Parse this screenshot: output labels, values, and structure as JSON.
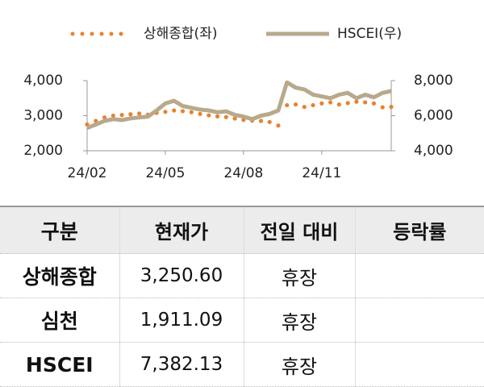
{
  "chart_data": {
    "type": "line",
    "x": [
      "24/02",
      null,
      null,
      null,
      null,
      null,
      null,
      null,
      null,
      "24/05",
      null,
      null,
      null,
      null,
      null,
      null,
      null,
      null,
      "24/08",
      null,
      null,
      null,
      null,
      null,
      null,
      null,
      null,
      "24/11",
      null,
      null,
      null,
      null,
      null,
      null,
      null,
      null
    ],
    "series": [
      {
        "name": "상해종합(좌)",
        "color": "#e8822e",
        "style": "dotted",
        "axis": "y",
        "values": [
          2750,
          2850,
          2950,
          3000,
          3020,
          3040,
          3060,
          3030,
          3080,
          3110,
          3150,
          3130,
          3100,
          3050,
          3010,
          2980,
          2960,
          2920,
          2880,
          2860,
          2850,
          2820,
          2720,
          3300,
          3320,
          3250,
          3300,
          3350,
          3380,
          3320,
          3360,
          3400,
          3380,
          3350,
          3240,
          3250
        ]
      },
      {
        "name": "HSCEI(우)",
        "color": "#b8a98c",
        "style": "solid",
        "axis": "y2",
        "values": [
          5300,
          5500,
          5700,
          5800,
          5750,
          5850,
          5900,
          5950,
          6300,
          6700,
          6850,
          6550,
          6450,
          6350,
          6300,
          6200,
          6250,
          6050,
          5950,
          5800,
          6000,
          6100,
          6300,
          7900,
          7600,
          7500,
          7200,
          7100,
          7000,
          7200,
          7300,
          7000,
          7200,
          7050,
          7300,
          7400
        ]
      }
    ],
    "ylim": [
      2000,
      4000
    ],
    "yticks": [
      {
        "value": 2000,
        "label": "2,000"
      },
      {
        "value": 3000,
        "label": "3,000"
      },
      {
        "value": 4000,
        "label": "4,000"
      }
    ],
    "y2lim": [
      4000,
      8000
    ],
    "y2ticks": [
      {
        "value": 4000,
        "label": "4,000"
      },
      {
        "value": 6000,
        "label": "6,000"
      },
      {
        "value": 8000,
        "label": "8,000"
      }
    ]
  },
  "table": {
    "header": [
      "구분",
      "현재가",
      "전일 대비",
      "등락률"
    ],
    "rows": [
      [
        "상해종합",
        "3,250.60",
        "휴장"
      ],
      [
        "심천",
        "1,911.09",
        "휴장"
      ],
      [
        "HSCEI",
        "7,382.13",
        "휴장"
      ]
    ]
  }
}
